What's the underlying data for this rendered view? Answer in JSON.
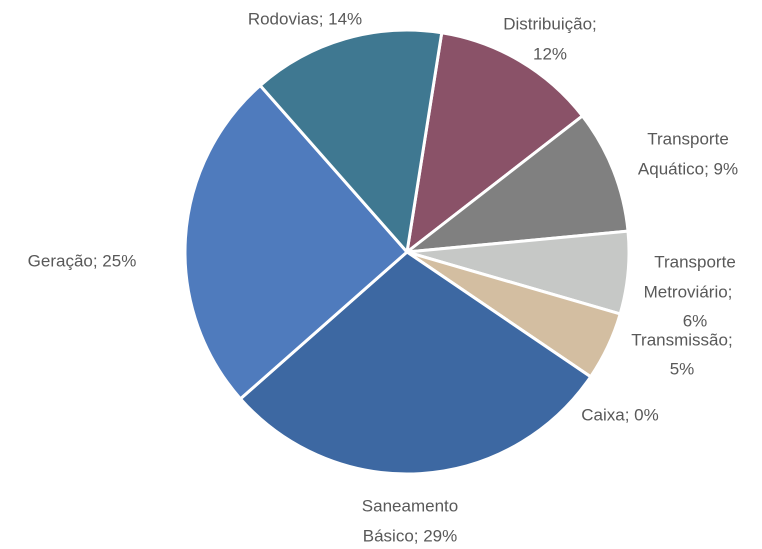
{
  "chart_data": {
    "type": "pie",
    "labels": [
      [
        "Distribuição;",
        "12%"
      ],
      [
        "Transporte",
        "Aquático; 9%"
      ],
      [
        "Transporte",
        "Metroviário;",
        "6%"
      ],
      [
        "Transmissão;",
        "5%"
      ],
      [
        "Caixa; 0%"
      ],
      [
        "Saneamento",
        "Básico; 29%"
      ],
      [
        "Geração; 25%"
      ],
      [
        "Rodovias; 14%"
      ]
    ],
    "values": [
      12,
      9,
      6,
      5,
      0,
      29,
      25,
      14
    ],
    "colors": [
      "#8a5268",
      "#808080",
      "#c6c8c6",
      "#d3bea1",
      "#a8a8a8",
      "#3d68a2",
      "#4f7bbd",
      "#3f7891"
    ]
  }
}
